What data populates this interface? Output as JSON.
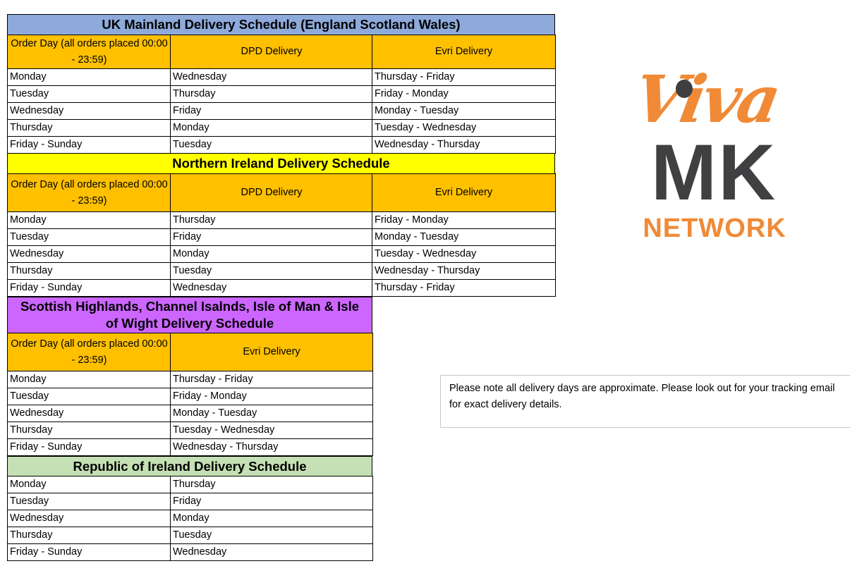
{
  "sections": [
    {
      "title": "UK Mainland Delivery Schedule (England Scotland Wales)",
      "title_color": "#8eaadb",
      "headers": [
        "Order Day (all orders placed 00:00 - 23:59)",
        "DPD Delivery",
        "Evri Delivery"
      ],
      "rows": [
        [
          "Monday",
          "Wednesday",
          "Thursday - Friday"
        ],
        [
          "Tuesday",
          "Thursday",
          "Friday - Monday"
        ],
        [
          "Wednesday",
          "Friday",
          "Monday - Tuesday"
        ],
        [
          "Thursday",
          "Monday",
          "Tuesday - Wednesday"
        ],
        [
          "Friday - Sunday",
          "Tuesday",
          "Wednesday - Thursday"
        ]
      ]
    },
    {
      "title": "Northern Ireland Delivery Schedule",
      "title_color": "#ffff00",
      "headers": [
        "Order Day (all orders placed 00:00 - 23:59)",
        "DPD Delivery",
        "Evri Delivery"
      ],
      "rows": [
        [
          "Monday",
          "Thursday",
          "Friday - Monday"
        ],
        [
          "Tuesday",
          "Friday",
          "Monday - Tuesday"
        ],
        [
          "Wednesday",
          "Monday",
          "Tuesday - Wednesday"
        ],
        [
          "Thursday",
          "Tuesday",
          "Wednesday - Thursday"
        ],
        [
          "Friday - Sunday",
          "Wednesday",
          "Thursday - Friday"
        ]
      ]
    },
    {
      "title": "Scottish Highlands, Channel Isalnds, Isle of Man & Isle of Wight      Delivery Schedule",
      "title_color": "#cc66ff",
      "headers": [
        "Order Day (all orders placed 00:00 - 23:59)",
        "Evri Delivery"
      ],
      "rows": [
        [
          "Monday",
          "Thursday - Friday"
        ],
        [
          "Tuesday",
          "Friday - Monday"
        ],
        [
          "Wednesday",
          "Monday - Tuesday"
        ],
        [
          "Thursday",
          "Tuesday - Wednesday"
        ],
        [
          "Friday - Sunday",
          "Wednesday - Thursday"
        ]
      ]
    },
    {
      "title": "Republic of Ireland Delivery Schedule",
      "title_color": "#c5e0b4",
      "headers": [],
      "rows": [
        [
          "Monday",
          "Thursday"
        ],
        [
          "Tuesday",
          "Friday"
        ],
        [
          "Wednesday",
          "Monday"
        ],
        [
          "Thursday",
          "Tuesday"
        ],
        [
          "Friday - Sunday",
          "Wednesday"
        ]
      ]
    }
  ],
  "header_color": "#ffc000",
  "note": "Please note all delivery days are approximate. Please look out for your tracking email for exact delivery details.",
  "logo": {
    "line1": "Viva",
    "line2": "MK",
    "line3": "NETWORK"
  }
}
